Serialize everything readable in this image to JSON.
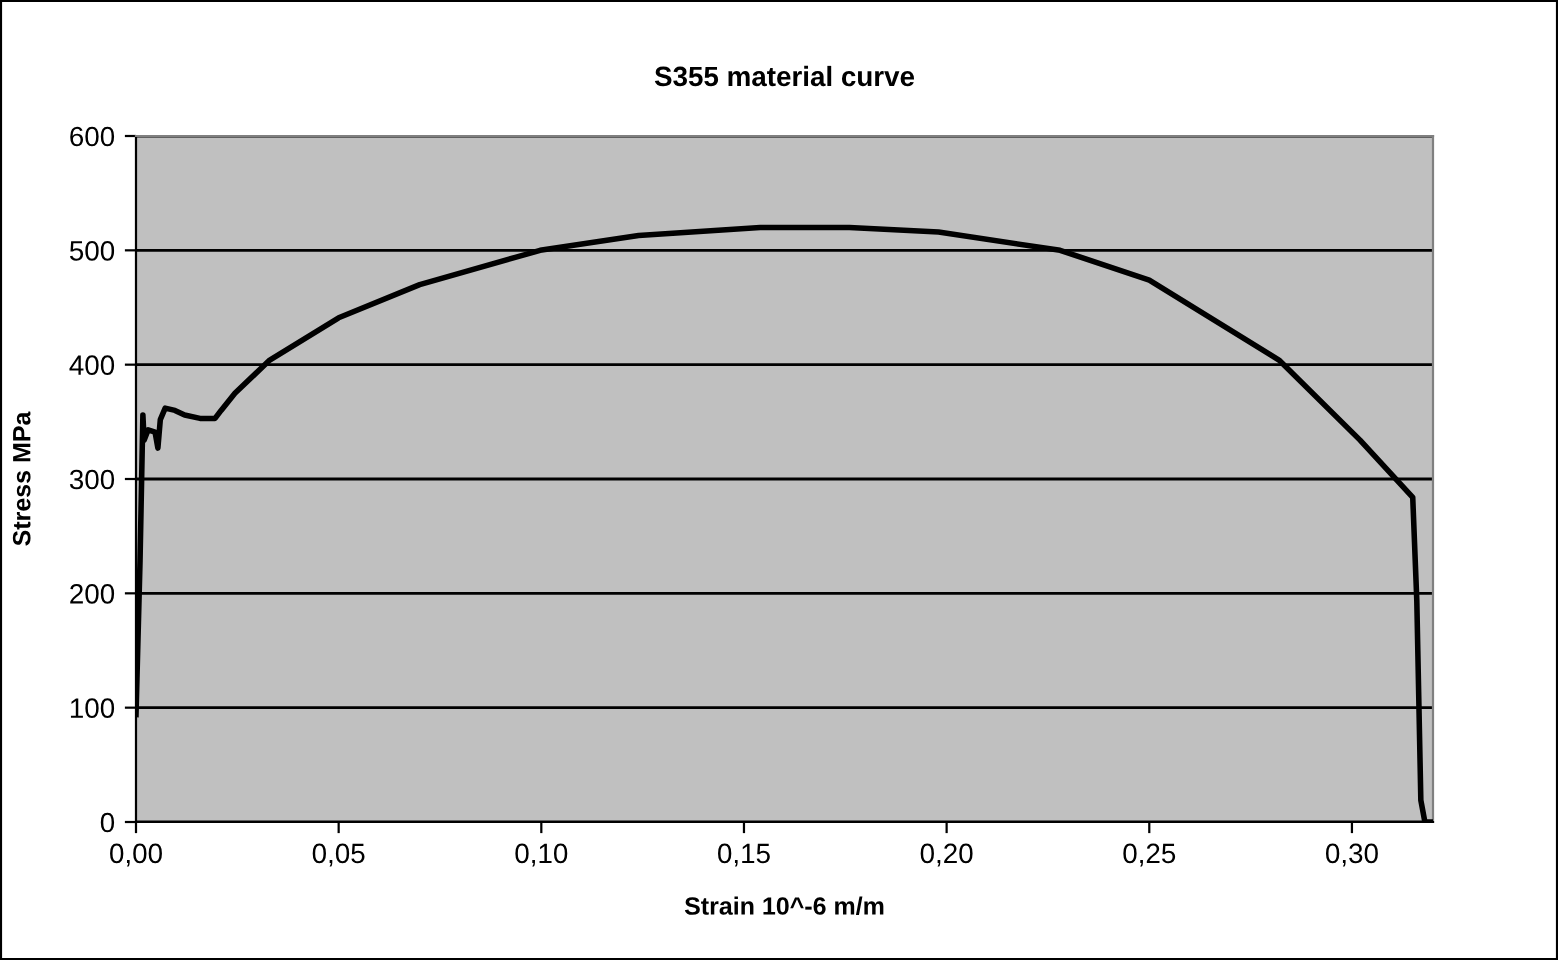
{
  "chart_data": {
    "type": "line",
    "title": "S355 material curve",
    "xlabel": "Strain 10^-6 m/m",
    "ylabel": "Stress MPa",
    "xlim": [
      0,
      0.32
    ],
    "xticks": [
      {
        "value": 0,
        "label": "0,00"
      },
      {
        "value": 0.05,
        "label": "0,05"
      },
      {
        "value": 0.1,
        "label": "0,10"
      },
      {
        "value": 0.15,
        "label": "0,15"
      },
      {
        "value": 0.2,
        "label": "0,20"
      },
      {
        "value": 0.25,
        "label": "0,25"
      },
      {
        "value": 0.3,
        "label": "0,30"
      }
    ],
    "ylim": [
      0,
      600
    ],
    "yticks": [
      0,
      100,
      200,
      300,
      400,
      500,
      600
    ],
    "grid": "y",
    "legend": false,
    "series": [
      {
        "color": "#000000",
        "x": [
          0,
          0.001,
          0.0017,
          0.002,
          0.003,
          0.0047,
          0.0054,
          0.006,
          0.0072,
          0.0096,
          0.012,
          0.0158,
          0.0195,
          0.021,
          0.0244,
          0.033,
          0.05,
          0.07,
          0.0997,
          0.124,
          0.154,
          0.176,
          0.198,
          0.228,
          0.25,
          0.282,
          0.302,
          0.315,
          0.316,
          0.317,
          0.318,
          0.32
        ],
        "values": [
          94,
          229,
          356,
          334,
          343,
          341,
          327,
          352,
          362,
          360,
          356,
          353,
          353,
          360,
          375,
          404,
          441,
          470,
          500,
          513,
          520,
          520,
          516,
          500,
          474,
          404,
          334,
          284,
          194,
          19,
          0,
          0
        ]
      }
    ]
  }
}
